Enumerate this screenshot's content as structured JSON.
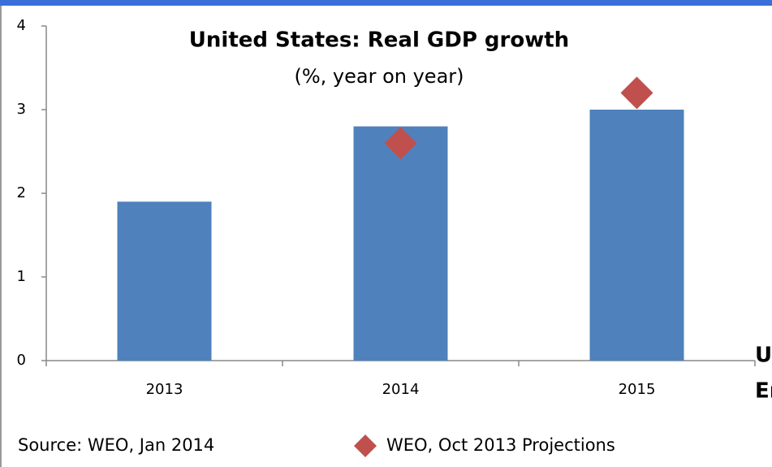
{
  "chart_data": {
    "type": "bar",
    "title": "United States: Real GDP growth",
    "subtitle": "(%, year on year)",
    "categories": [
      "2013",
      "2014",
      "2015"
    ],
    "series": [
      {
        "type": "bar",
        "color": "#4f81bd",
        "values": [
          1.9,
          2.8,
          3.0
        ]
      },
      {
        "type": "scatter",
        "name": "WEO, Oct 2013 Projections",
        "color": "#c0504d",
        "values": [
          null,
          2.6,
          3.2
        ]
      }
    ],
    "ylim": [
      0,
      4
    ],
    "yticks": [
      0,
      1,
      2,
      3,
      4
    ],
    "grid": false,
    "source": "Source: WEO, Jan 2014",
    "cut_off_text": [
      "U",
      "Er"
    ]
  }
}
